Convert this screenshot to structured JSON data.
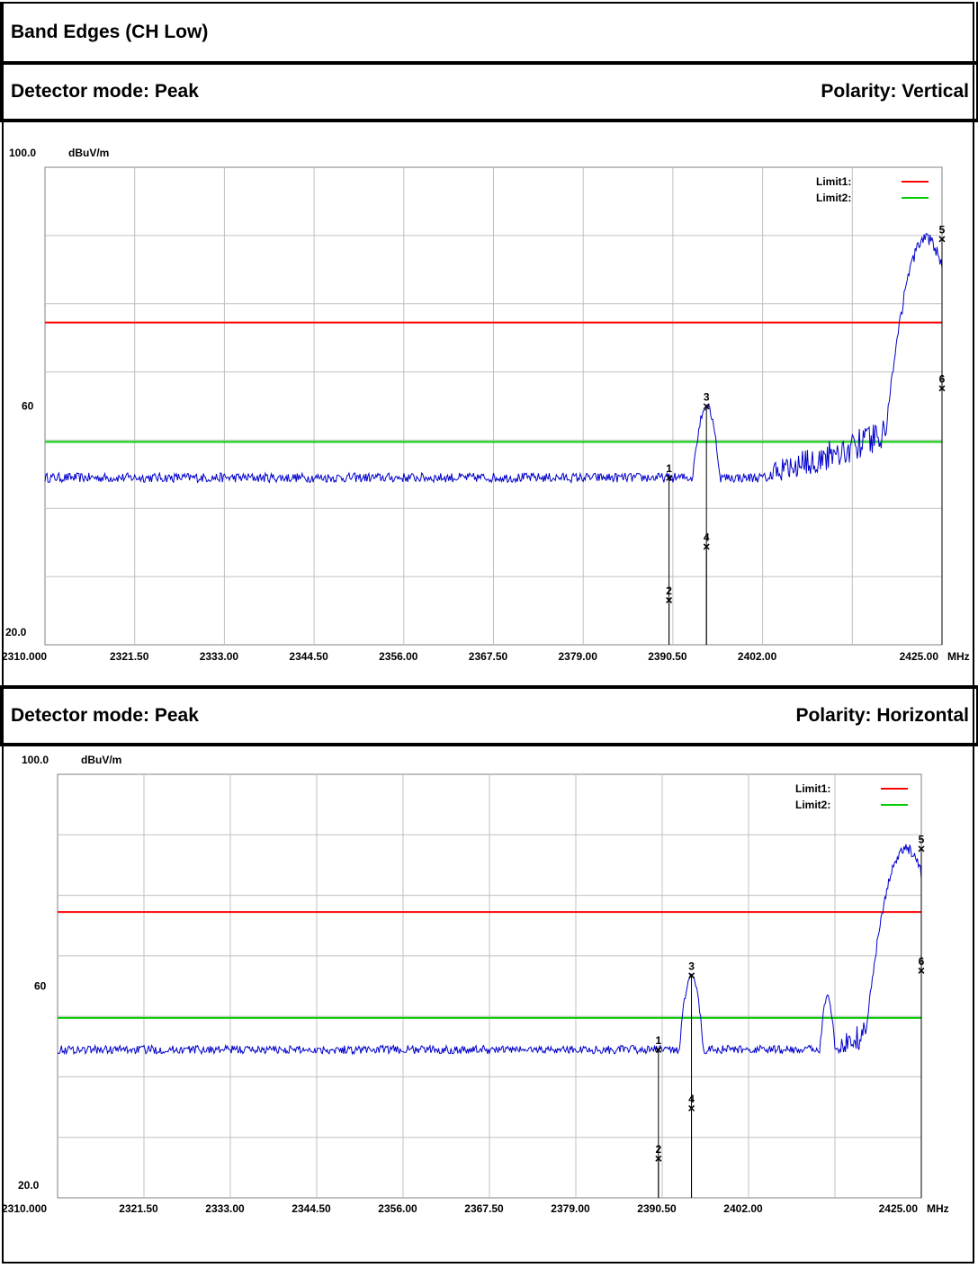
{
  "title": "Band Edges (CH Low)",
  "colors": {
    "limit1": "#ff0000",
    "limit2": "#00cc00",
    "trace": "#0000cc",
    "grid": "#c0c0c0"
  },
  "sections": [
    {
      "detector_label": "Detector mode: Peak",
      "polarity_label": "Polarity: Vertical"
    },
    {
      "detector_label": "Detector mode: Peak",
      "polarity_label": "Polarity: Horizontal"
    }
  ],
  "chart_data": [
    {
      "type": "line",
      "y_top_label": "100.0",
      "y_unit": "dBuV/m",
      "y_mid_label": "60",
      "y_bottom_label": "20.0",
      "ylim": [
        20,
        100
      ],
      "xlim": [
        2310.0,
        2425.0
      ],
      "x_unit": "MHz",
      "x_ticks": [
        "2310.000",
        "2321.50",
        "2333.00",
        "2344.50",
        "2356.00",
        "2367.50",
        "2379.00",
        "2390.50",
        "2402.00",
        "2425.00"
      ],
      "x_tick_values": [
        2310.0,
        2321.5,
        2333.0,
        2344.5,
        2356.0,
        2367.5,
        2379.0,
        2390.5,
        2402.0,
        2425.0
      ],
      "grid": true,
      "legend_position": "top-right",
      "legend": [
        {
          "label": "Limit1:",
          "color": "#ff0000"
        },
        {
          "label": "Limit2:",
          "color": "#00cc00"
        }
      ],
      "limits": {
        "limit1": 74,
        "limit2": 54
      },
      "noise_floor": 48,
      "peaks": [
        {
          "start": 2393.0,
          "end": 2396.5,
          "center": 2394.8,
          "level": 60
        },
        {
          "start": 2403.0,
          "end": 2425.0,
          "center": 2423.0,
          "level": 88,
          "ramp": true
        }
      ],
      "markers": [
        {
          "label": "1",
          "x": 2390.0,
          "y": 48.0
        },
        {
          "label": "2",
          "x": 2390.0,
          "y": 27.5
        },
        {
          "label": "3",
          "x": 2394.8,
          "y": 60.0
        },
        {
          "label": "4",
          "x": 2394.8,
          "y": 36.5
        },
        {
          "label": "5",
          "x": 2425.0,
          "y": 88.0
        },
        {
          "label": "6",
          "x": 2425.0,
          "y": 63.0
        }
      ]
    },
    {
      "type": "line",
      "y_top_label": "100.0",
      "y_unit": "dBuV/m",
      "y_mid_label": "60",
      "y_bottom_label": "20.0",
      "ylim": [
        20,
        100
      ],
      "xlim": [
        2310.0,
        2425.0
      ],
      "x_unit": "MHz",
      "x_ticks": [
        "2310.000",
        "2321.50",
        "2333.00",
        "2344.50",
        "2356.00",
        "2367.50",
        "2379.00",
        "2390.50",
        "2402.00",
        "2425.00"
      ],
      "x_tick_values": [
        2310.0,
        2321.5,
        2333.0,
        2344.5,
        2356.0,
        2367.5,
        2379.0,
        2390.5,
        2402.0,
        2425.0
      ],
      "grid": true,
      "legend_position": "top-right",
      "legend": [
        {
          "label": "Limit1:",
          "color": "#ff0000"
        },
        {
          "label": "Limit2:",
          "color": "#00cc00"
        }
      ],
      "limits": {
        "limit1": 74,
        "limit2": 54
      },
      "noise_floor": 48,
      "peaks": [
        {
          "start": 2392.8,
          "end": 2396.0,
          "center": 2394.4,
          "level": 62
        },
        {
          "start": 2411.5,
          "end": 2413.5,
          "center": 2412.5,
          "level": 58
        },
        {
          "start": 2414.0,
          "end": 2425.0,
          "center": 2423.0,
          "level": 86,
          "ramp": true
        }
      ],
      "markers": [
        {
          "label": "1",
          "x": 2390.0,
          "y": 48.0
        },
        {
          "label": "2",
          "x": 2390.0,
          "y": 27.5
        },
        {
          "label": "3",
          "x": 2394.4,
          "y": 62.0
        },
        {
          "label": "4",
          "x": 2394.4,
          "y": 37.0
        },
        {
          "label": "5",
          "x": 2425.0,
          "y": 86.0
        },
        {
          "label": "6",
          "x": 2425.0,
          "y": 63.0
        }
      ]
    }
  ]
}
